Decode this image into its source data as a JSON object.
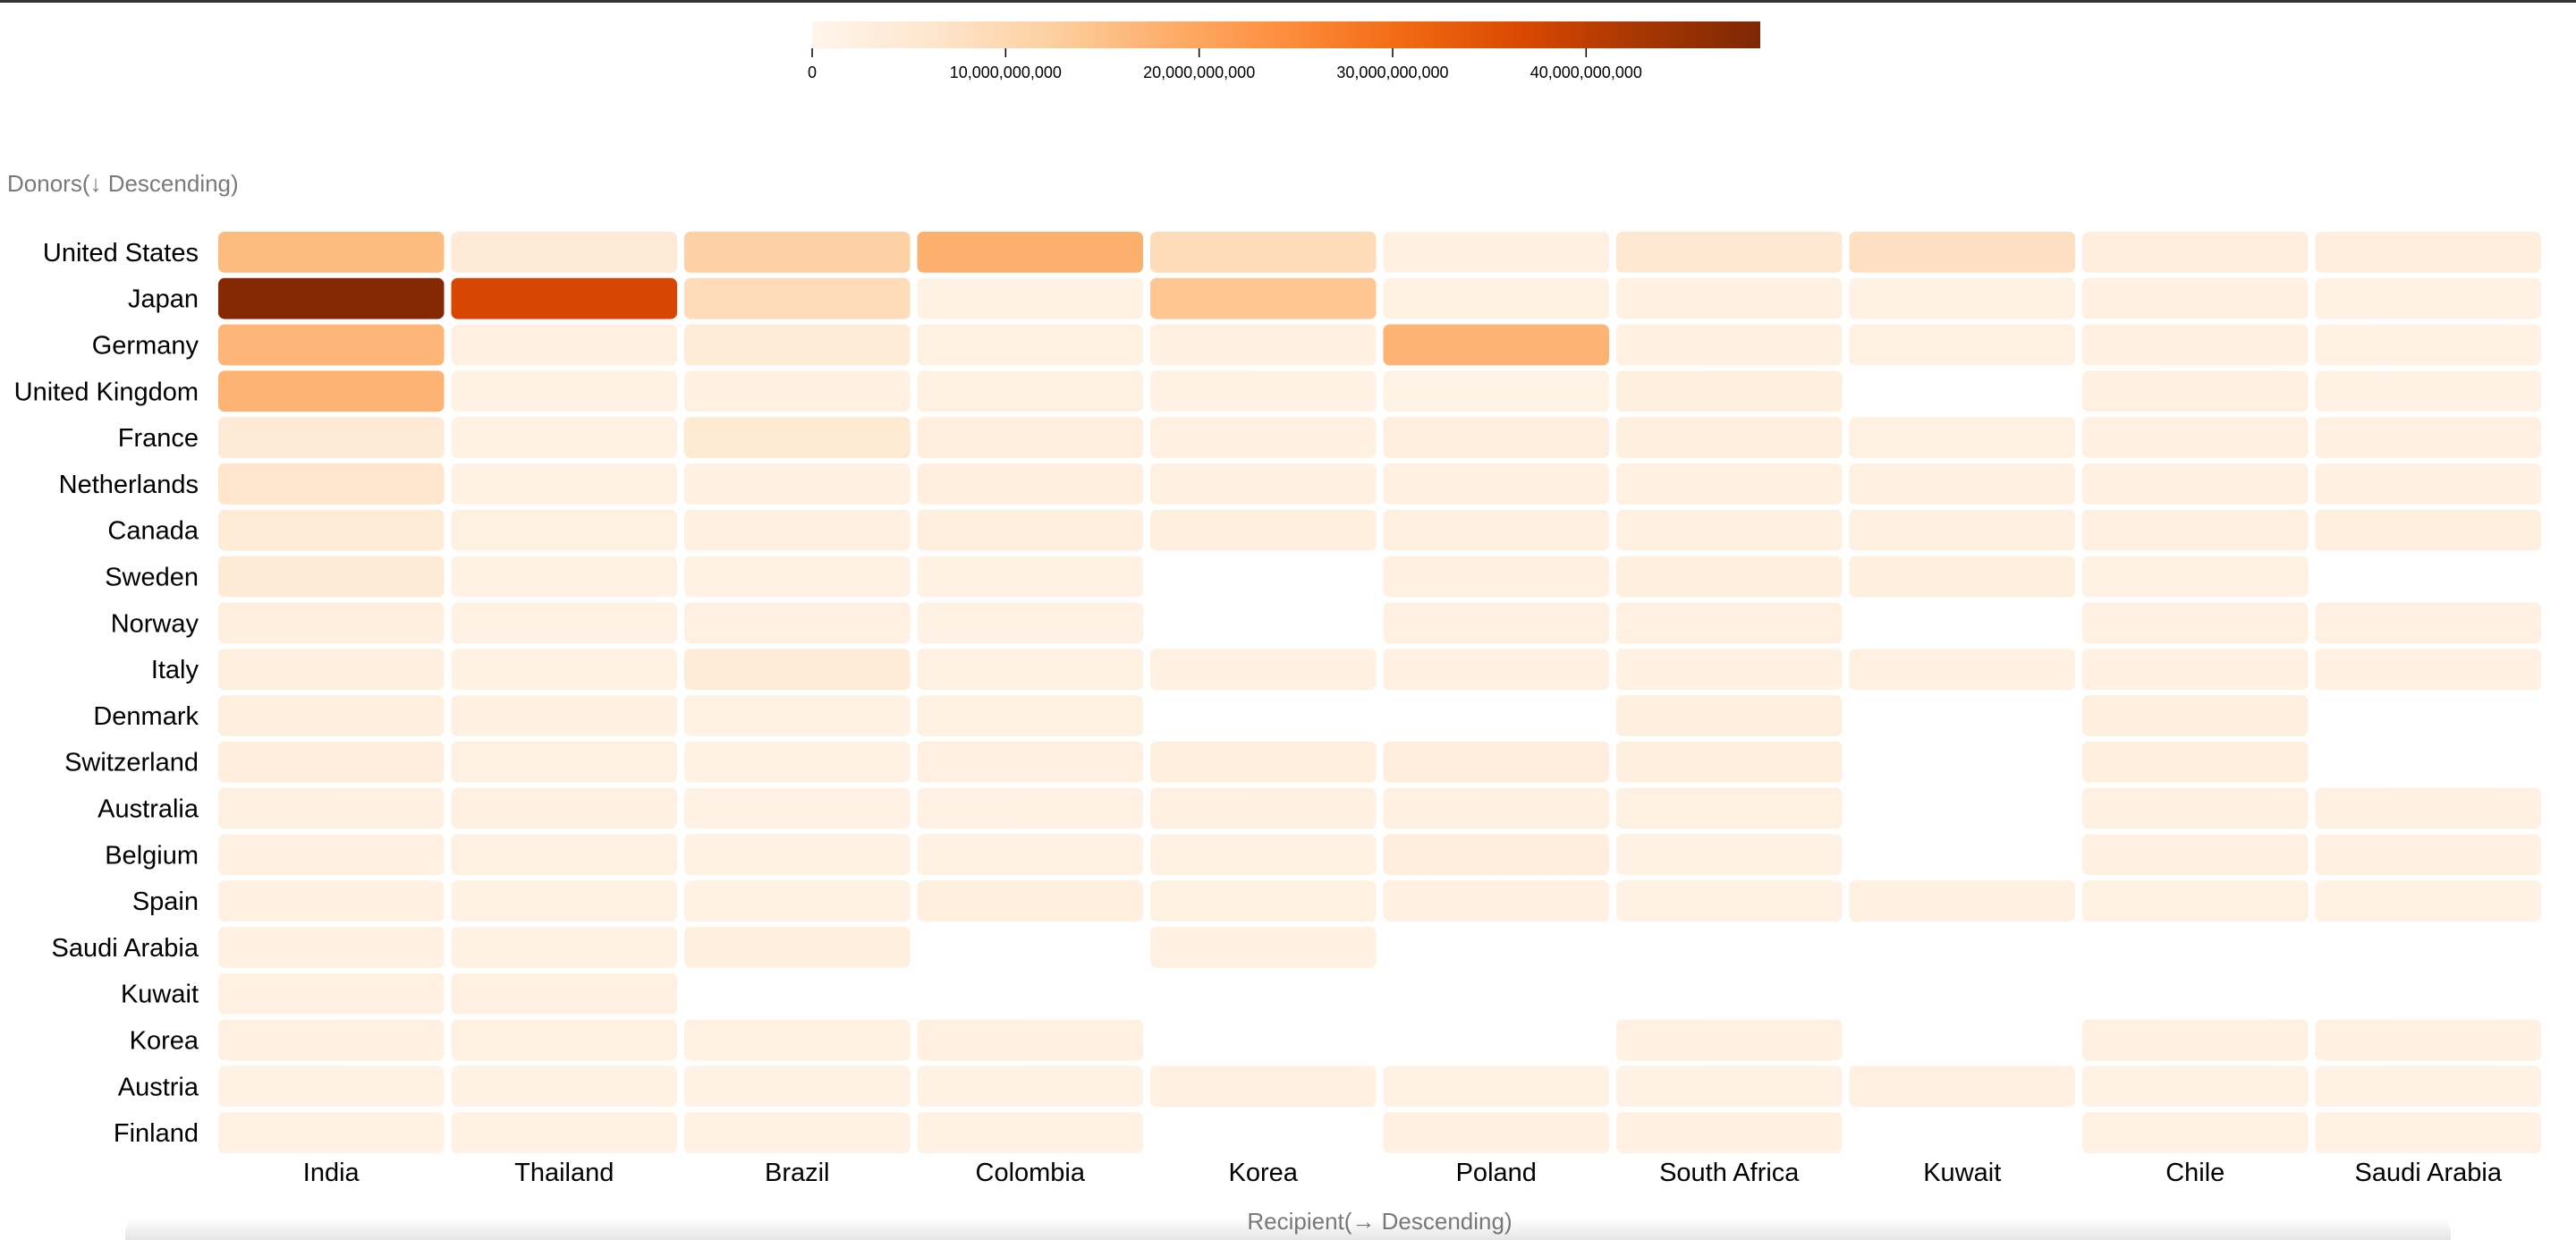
{
  "chart_data": {
    "type": "heatmap",
    "y_axis_title": "Donors(↓ Descending)",
    "x_axis_title": "Recipient(→ Descending)",
    "rows": [
      "United States",
      "Japan",
      "Germany",
      "United Kingdom",
      "France",
      "Netherlands",
      "Canada",
      "Sweden",
      "Norway",
      "Italy",
      "Denmark",
      "Switzerland",
      "Australia",
      "Belgium",
      "Spain",
      "Saudi Arabia",
      "Kuwait",
      "Korea",
      "Austria",
      "Finland"
    ],
    "columns": [
      "India",
      "Thailand",
      "Brazil",
      "Colombia",
      "Korea",
      "Poland",
      "South Africa",
      "Kuwait",
      "Chile",
      "Saudi Arabia"
    ],
    "color_scale": {
      "min": 0,
      "max": 49000000000,
      "ticks": [
        0,
        10000000000,
        20000000000,
        30000000000,
        40000000000
      ],
      "tick_labels": [
        "0",
        "10,000,000,000",
        "20,000,000,000",
        "30,000,000,000",
        "40,000,000,000"
      ],
      "colors": [
        "#fff5eb",
        "#fee6ce",
        "#fdd0a2",
        "#fdae6b",
        "#fd8d3c",
        "#f16913",
        "#d94801",
        "#a63603",
        "#7f2704"
      ]
    },
    "values": [
      [
        16000000000,
        4500000000,
        12000000000,
        18000000000,
        9000000000,
        2000000000,
        5500000000,
        8000000000,
        3000000000,
        3000000000
      ],
      [
        48000000000,
        37000000000,
        9000000000,
        1500000000,
        14000000000,
        1500000000,
        2000000000,
        1500000000,
        2000000000,
        1500000000
      ],
      [
        17000000000,
        2000000000,
        4000000000,
        1800000000,
        2000000000,
        17500000000,
        2000000000,
        1800000000,
        2000000000,
        1500000000
      ],
      [
        17500000000,
        1500000000,
        2000000000,
        1800000000,
        1500000000,
        1000000000,
        2500000000,
        null,
        2000000000,
        1500000000
      ],
      [
        4500000000,
        1500000000,
        5000000000,
        2500000000,
        2000000000,
        2500000000,
        2500000000,
        1800000000,
        2000000000,
        2000000000
      ],
      [
        6500000000,
        1500000000,
        2000000000,
        2500000000,
        2000000000,
        2000000000,
        2000000000,
        2000000000,
        2000000000,
        2000000000
      ],
      [
        4000000000,
        1800000000,
        2000000000,
        2500000000,
        2500000000,
        2000000000,
        2000000000,
        2000000000,
        2000000000,
        2500000000
      ],
      [
        4500000000,
        1500000000,
        1500000000,
        1500000000,
        null,
        2000000000,
        2500000000,
        2500000000,
        1500000000,
        null
      ],
      [
        2500000000,
        1500000000,
        2000000000,
        1500000000,
        null,
        2000000000,
        2000000000,
        null,
        2000000000,
        2000000000
      ],
      [
        2500000000,
        1500000000,
        4000000000,
        1800000000,
        2000000000,
        2000000000,
        2000000000,
        2000000000,
        2000000000,
        2000000000
      ],
      [
        2500000000,
        2000000000,
        1500000000,
        1800000000,
        null,
        null,
        2500000000,
        null,
        2500000000,
        null
      ],
      [
        3000000000,
        1800000000,
        1500000000,
        2000000000,
        2500000000,
        3000000000,
        2500000000,
        null,
        2500000000,
        null
      ],
      [
        2000000000,
        2000000000,
        1500000000,
        1500000000,
        2000000000,
        2000000000,
        1800000000,
        null,
        2000000000,
        2000000000
      ],
      [
        2000000000,
        1800000000,
        1500000000,
        1500000000,
        1800000000,
        3000000000,
        1500000000,
        null,
        2000000000,
        2000000000
      ],
      [
        2000000000,
        1500000000,
        1500000000,
        2500000000,
        1800000000,
        2000000000,
        1500000000,
        2000000000,
        1800000000,
        1500000000
      ],
      [
        2000000000,
        1500000000,
        2500000000,
        null,
        2000000000,
        null,
        null,
        null,
        null,
        null
      ],
      [
        2000000000,
        2000000000,
        null,
        null,
        null,
        null,
        null,
        null,
        null,
        null
      ],
      [
        2000000000,
        1800000000,
        1800000000,
        2000000000,
        null,
        null,
        2000000000,
        null,
        2000000000,
        2000000000
      ],
      [
        1500000000,
        1500000000,
        1500000000,
        1500000000,
        2000000000,
        1500000000,
        1500000000,
        2000000000,
        1500000000,
        1500000000
      ],
      [
        1500000000,
        1500000000,
        1500000000,
        1500000000,
        null,
        2000000000,
        2000000000,
        null,
        1500000000,
        1500000000
      ]
    ],
    "legend_placement": "top-center",
    "grid": false
  }
}
